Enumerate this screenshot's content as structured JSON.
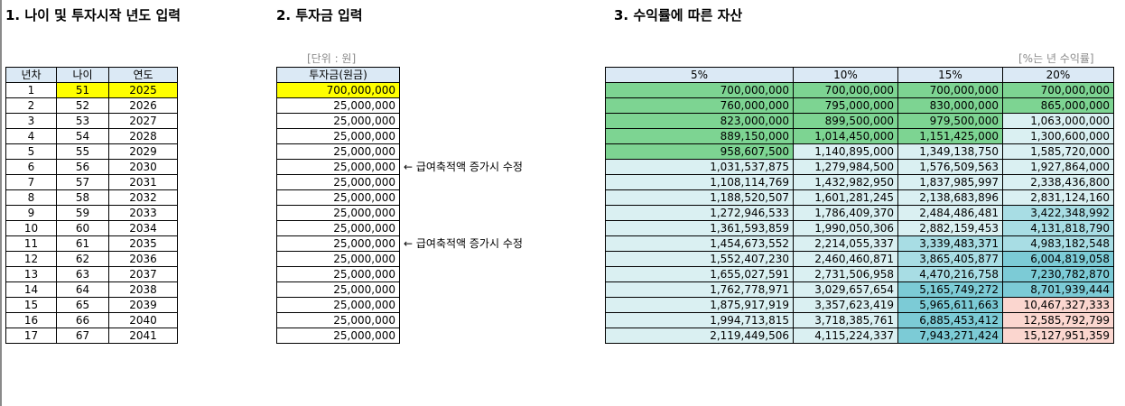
{
  "titles": {
    "section1": "1. 나이 및 투자시작 년도 입력",
    "section2": "2. 투자금 입력",
    "section3": "3. 수익률에 따른 자산"
  },
  "units": {
    "investment": "[단위 : 원]",
    "returns": "[%는 년 수익률]"
  },
  "age_table": {
    "headers": [
      "년차",
      "나이",
      "연도"
    ],
    "rows": [
      [
        "1",
        "51",
        "2025"
      ],
      [
        "2",
        "52",
        "2026"
      ],
      [
        "3",
        "53",
        "2027"
      ],
      [
        "4",
        "54",
        "2028"
      ],
      [
        "5",
        "55",
        "2029"
      ],
      [
        "6",
        "56",
        "2030"
      ],
      [
        "7",
        "57",
        "2031"
      ],
      [
        "8",
        "58",
        "2032"
      ],
      [
        "9",
        "59",
        "2033"
      ],
      [
        "10",
        "60",
        "2034"
      ],
      [
        "11",
        "61",
        "2035"
      ],
      [
        "12",
        "62",
        "2036"
      ],
      [
        "13",
        "63",
        "2037"
      ],
      [
        "14",
        "64",
        "2038"
      ],
      [
        "15",
        "65",
        "2039"
      ],
      [
        "16",
        "66",
        "2040"
      ],
      [
        "17",
        "67",
        "2041"
      ]
    ]
  },
  "investment_table": {
    "header": "투자금(원금)",
    "rows": [
      "700,000,000",
      "25,000,000",
      "25,000,000",
      "25,000,000",
      "25,000,000",
      "25,000,000",
      "25,000,000",
      "25,000,000",
      "25,000,000",
      "25,000,000",
      "25,000,000",
      "25,000,000",
      "25,000,000",
      "25,000,000",
      "25,000,000",
      "25,000,000",
      "25,000,000"
    ]
  },
  "notes": [
    {
      "row": 6,
      "text": "← 급여축적액 증가시 수정"
    },
    {
      "row": 11,
      "text": "← 급여축적액 증가시 수정"
    }
  ],
  "returns_table": {
    "headers": [
      "5%",
      "10%",
      "15%",
      "20%"
    ],
    "rows": [
      [
        "700,000,000",
        "700,000,000",
        "700,000,000",
        "700,000,000"
      ],
      [
        "760,000,000",
        "795,000,000",
        "830,000,000",
        "865,000,000"
      ],
      [
        "823,000,000",
        "899,500,000",
        "979,500,000",
        "1,063,000,000"
      ],
      [
        "889,150,000",
        "1,014,450,000",
        "1,151,425,000",
        "1,300,600,000"
      ],
      [
        "958,607,500",
        "1,140,895,000",
        "1,349,138,750",
        "1,585,720,000"
      ],
      [
        "1,031,537,875",
        "1,279,984,500",
        "1,576,509,563",
        "1,927,864,000"
      ],
      [
        "1,108,114,769",
        "1,432,982,950",
        "1,837,985,997",
        "2,338,436,800"
      ],
      [
        "1,188,520,507",
        "1,601,281,245",
        "2,138,683,896",
        "2,831,124,160"
      ],
      [
        "1,272,946,533",
        "1,786,409,370",
        "2,484,486,481",
        "3,422,348,992"
      ],
      [
        "1,361,593,859",
        "1,990,050,306",
        "2,882,159,453",
        "4,131,818,790"
      ],
      [
        "1,454,673,552",
        "2,214,055,337",
        "3,339,483,371",
        "4,983,182,548"
      ],
      [
        "1,552,407,230",
        "2,460,460,871",
        "3,865,405,877",
        "6,004,819,058"
      ],
      [
        "1,655,027,591",
        "2,731,506,958",
        "4,470,216,758",
        "7,230,782,870"
      ],
      [
        "1,762,778,971",
        "3,029,657,654",
        "5,165,749,272",
        "8,701,939,444"
      ],
      [
        "1,875,917,919",
        "3,357,623,419",
        "5,965,611,663",
        "10,467,327,333"
      ],
      [
        "1,994,713,815",
        "3,718,385,761",
        "6,885,453,412",
        "12,585,792,799"
      ],
      [
        "2,119,449,506",
        "4,115,224,337",
        "7,943,271,424",
        "15,127,951,359"
      ]
    ]
  },
  "colors": {
    "header_bg": "#dbe9f5",
    "input_highlight": "#ffff00",
    "fill_green": "#7dd492",
    "fill_lightcyan": "#daf0f2",
    "fill_midcyan": "#a8dde4",
    "fill_teal": "#7ccbd6",
    "fill_pink": "#fbd6cf"
  },
  "returns_fill_map": [
    [
      "g",
      "g",
      "g",
      "g"
    ],
    [
      "g",
      "g",
      "g",
      "g"
    ],
    [
      "g",
      "g",
      "g",
      "l"
    ],
    [
      "g",
      "g",
      "g",
      "l"
    ],
    [
      "g",
      "l",
      "l",
      "l"
    ],
    [
      "l",
      "l",
      "l",
      "l"
    ],
    [
      "l",
      "l",
      "l",
      "l"
    ],
    [
      "l",
      "l",
      "l",
      "l"
    ],
    [
      "l",
      "l",
      "l",
      "m"
    ],
    [
      "l",
      "l",
      "l",
      "m"
    ],
    [
      "l",
      "l",
      "m",
      "m"
    ],
    [
      "l",
      "l",
      "m",
      "t"
    ],
    [
      "l",
      "l",
      "m",
      "t"
    ],
    [
      "l",
      "l",
      "t",
      "t"
    ],
    [
      "l",
      "l",
      "t",
      "p"
    ],
    [
      "l",
      "l",
      "t",
      "p"
    ],
    [
      "l",
      "l",
      "t",
      "p"
    ]
  ]
}
